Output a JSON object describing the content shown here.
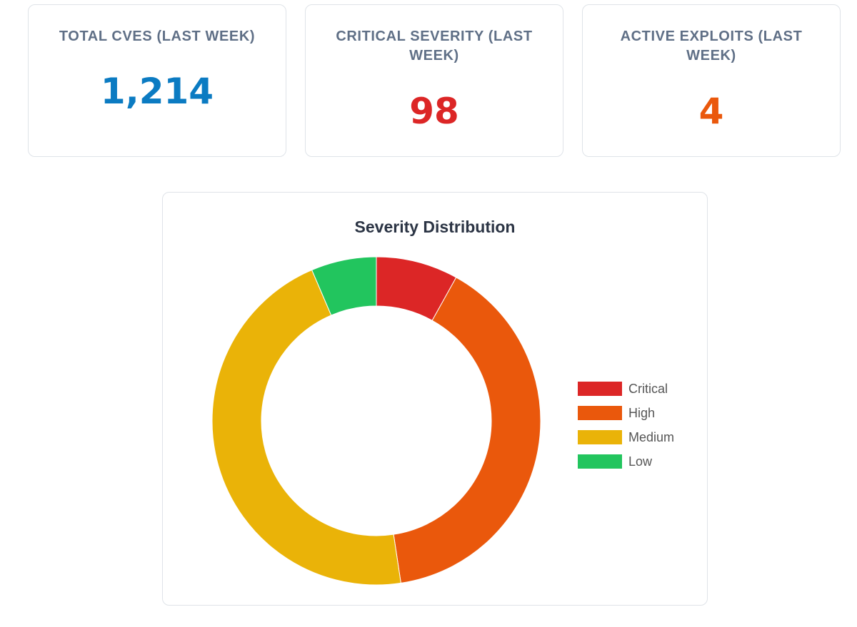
{
  "stats": [
    {
      "label": "TOTAL CVES (LAST WEEK)",
      "value": "1,214",
      "color": "#0b7bc2"
    },
    {
      "label": "CRITICAL SEVERITY (LAST WEEK)",
      "value": "98",
      "color": "#dc2626"
    },
    {
      "label": "ACTIVE EXPLOITS (LAST WEEK)",
      "value": "4",
      "color": "#ea580c"
    }
  ],
  "chart_data": {
    "type": "pie",
    "title": "Severity Distribution",
    "categories": [
      "Critical",
      "High",
      "Medium",
      "Low"
    ],
    "values": [
      98,
      480,
      558,
      78
    ],
    "colors": [
      "#dc2626",
      "#ea580c",
      "#eab308",
      "#22c55e"
    ],
    "donut": true,
    "legend_position": "right"
  }
}
